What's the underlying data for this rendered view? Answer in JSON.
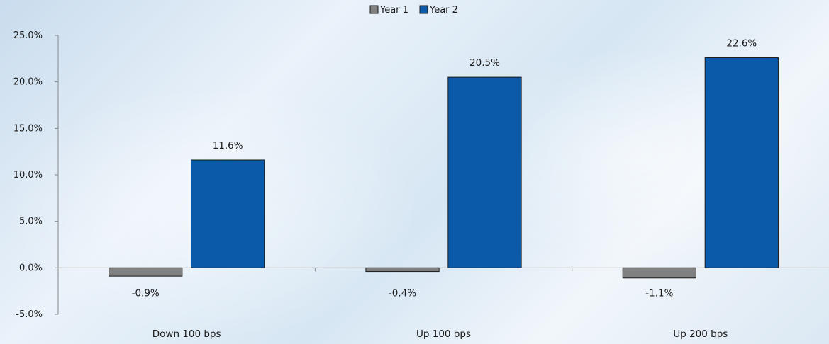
{
  "chart_data": {
    "type": "bar",
    "title": "",
    "xlabel": "",
    "ylabel": "",
    "categories": [
      "Down 100 bps",
      "Up 100 bps",
      "Up 200 bps"
    ],
    "series": [
      {
        "name": "Year 1",
        "values": [
          -0.9,
          -0.4,
          -1.1
        ],
        "labels": [
          "-0.9%",
          "-0.4%",
          "-1.1%"
        ],
        "color": "#808080"
      },
      {
        "name": "Year 2",
        "values": [
          11.6,
          20.5,
          22.6
        ],
        "labels": [
          "11.6%",
          "20.5%",
          "22.6%"
        ],
        "color": "#0b5aa9"
      }
    ],
    "ylim": [
      -5,
      25
    ],
    "yticks": [
      25,
      20,
      15,
      10,
      5,
      0,
      -5
    ],
    "ytick_labels": [
      "25.0%",
      "20.0%",
      "15.0%",
      "10.0%",
      "5.0%",
      "0.0%",
      "-5.0%"
    ],
    "legend_position": "top-center",
    "grid": false,
    "axis_color": "#888888",
    "bar_edge_color": "#1a1a1a"
  }
}
